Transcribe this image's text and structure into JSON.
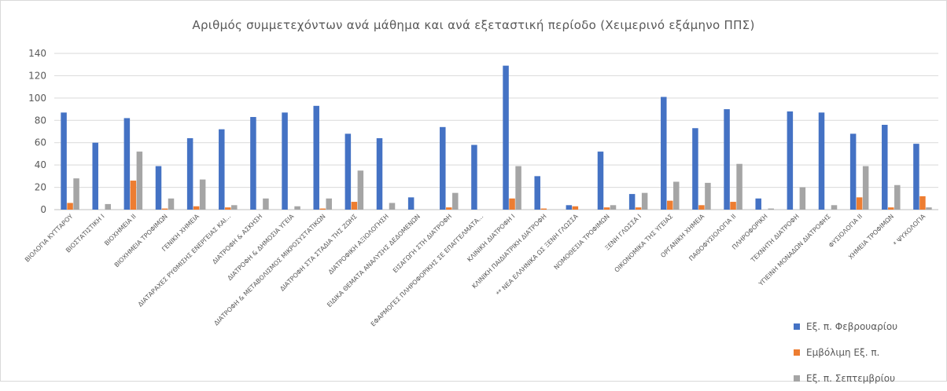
{
  "chart_data": {
    "type": "bar",
    "title": "Αριθμός συμμετεχόντων ανά μάθημα και ανά εξεταστική περίοδο (Χειμερινό εξάμηνο ΠΠΣ)",
    "ylim": [
      0,
      140
    ],
    "yticks": [
      "0",
      "20",
      "40",
      "60",
      "80",
      "100",
      "120",
      "140"
    ],
    "grid": true,
    "legend_position": "bottom-right",
    "categories": [
      "ΒΙΟΛΟΓΙΑ ΚΥΤΤΑΡΟΥ",
      "ΒΙΟΣΤΑΤΙΣΤΙΚΗ Ι",
      "ΒΙΟΧΗΜΕΙΑ ΙΙ",
      "ΒΙΟΧΗΜΕΙΑ ΤΡΟΦΙΜΩΝ",
      "ΓΕΝΙΚΗ ΧΗΜΕΙΑ",
      "ΔΙΑΤΑΡΑΧΕΣ ΡΥΘΜΙΣΗΣ ΕΝΕΡΓΕΙΑΣ ΚΑΙ...",
      "ΔΙΑΤΡΟΦΗ & ΑΣΚΗΣΗ",
      "ΔΙΑΤΡΟΦΗ & ΔΗΜΟΣΙΑ ΥΓΕΙΑ",
      "ΔΙΑΤΡΟΦΗ & ΜΕΤΑΒΟΛΙΣΜΟΣ ΜΙΚΡΟΣΥΣΤΑΤΙΚΩΝ",
      "ΔΙΑΤΡΟΦΗ ΣΤΑ ΣΤΑΔΙΑ ΤΗΣ ΖΩΗΣ",
      "ΔΙΑΤΡΟΦΙΚΗ ΑΞΙΟΛΟΓΗΣΗ",
      "ΕΙΔΙΚΑ ΘΕΜΑΤΑ ΑΝΑΛΥΣΗΣ ΔΕΔΟΜΕΝΩΝ",
      "ΕΙΣΑΓΩΓΗ ΣΤΗ ΔΙΑΤΡΟΦΗ",
      "ΕΦΑΡΜΟΓΕΣ ΠΛΗΡΟΦΟΡΙΚΗΣ ΣΕ ΕΠΑΓΓΕΛΜΑΤΑ...",
      "ΚΛΙΝΙΚΗ ΔΙΑΤΡΟΦΗ Ι",
      "ΚΛΙΝΙΚΗ ΠΑΙΔΙΑΤΡΙΚΗ ΔΙΑΤΡΟΦΗ",
      "** ΝΕΑ ΕΛΛΗΝΙΚΑ ΩΣ ΞΕΝΗ ΓΛΩΣΣΑ",
      "ΝΟΜΟΘΕΣΙΑ ΤΡΟΦΙΜΩΝ",
      "ΞΕΝΗ ΓΛΩΣΣΑ Ι",
      "ΟΙΚΟΝΟΜΙΚΑ ΤΗΣ ΥΓΕΙΑΣ",
      "ΟΡΓΑΝΙΚΗ ΧΗΜΕΙΑ",
      "ΠΑΘΟΦΥΣΙΟΛΟΓΙΑ ΙΙ",
      "ΠΛΗΡΟΦΟΡΙΚΗ",
      "ΤΕΧΝΗΤΗ ΔΙΑΤΡΟΦΗ",
      "ΥΓΙΕΙΝΗ ΜΟΝΑΔΩΝ ΔΙΑΤΡΟΦΗΣ",
      "ΦΥΣΙΟΛΟΓΙΑ ΙΙ",
      "ΧΗΜΕΙΑ ΤΡΟΦΙΜΩΝ",
      "* ΨΥΧΟΛΟΓΙΑ"
    ],
    "series": [
      {
        "name": "Εξ. π. Φεβρουαρίου",
        "color": "#4472c4",
        "values": [
          87,
          60,
          82,
          39,
          64,
          72,
          83,
          87,
          93,
          68,
          64,
          11,
          74,
          58,
          129,
          30,
          4,
          52,
          14,
          101,
          73,
          90,
          10,
          88,
          87,
          68,
          76,
          59
        ]
      },
      {
        "name": "Εμβόλιμη Εξ. π.",
        "color": "#ed7d31",
        "values": [
          6,
          0,
          26,
          1,
          3,
          2,
          0,
          0,
          1,
          7,
          0,
          0,
          2,
          0,
          10,
          1,
          3,
          2,
          2,
          8,
          4,
          7,
          0,
          0,
          0,
          11,
          2,
          12
        ]
      },
      {
        "name": "Εξ. π. Σεπτεμβρίου",
        "color": "#a5a5a5",
        "values": [
          28,
          5,
          52,
          10,
          27,
          4,
          10,
          3,
          10,
          35,
          6,
          0,
          15,
          0,
          39,
          0,
          0,
          4,
          15,
          25,
          24,
          41,
          1,
          20,
          4,
          39,
          22,
          2
        ]
      }
    ]
  }
}
